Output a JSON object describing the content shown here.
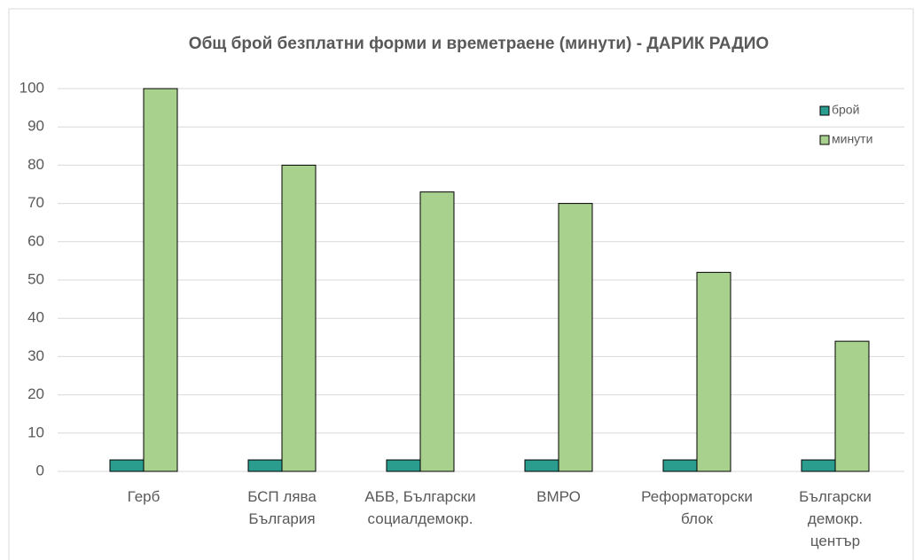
{
  "chart_data": {
    "type": "bar",
    "title": "Общ брой  безплатни форми и времетраене (минути) - ДАРИК РАДИО",
    "categories": [
      "Герб",
      "БСП лява\nБългария",
      "АБВ, Български\nсоциалдемокр.",
      "ВМРО",
      "Реформаторски\nблок",
      "Български\nдемокр.\nцентър"
    ],
    "series": [
      {
        "name": "брой",
        "color": "#2a9d8f",
        "values": [
          3,
          3,
          3,
          3,
          3,
          3
        ]
      },
      {
        "name": "минути",
        "color": "#a9d18e",
        "values": [
          100,
          80,
          73,
          70,
          52,
          34
        ]
      }
    ],
    "ylim": [
      0,
      100
    ],
    "yticks": [
      0,
      10,
      20,
      30,
      40,
      50,
      60,
      70,
      80,
      90,
      100
    ],
    "grid": true,
    "legend": "right"
  }
}
